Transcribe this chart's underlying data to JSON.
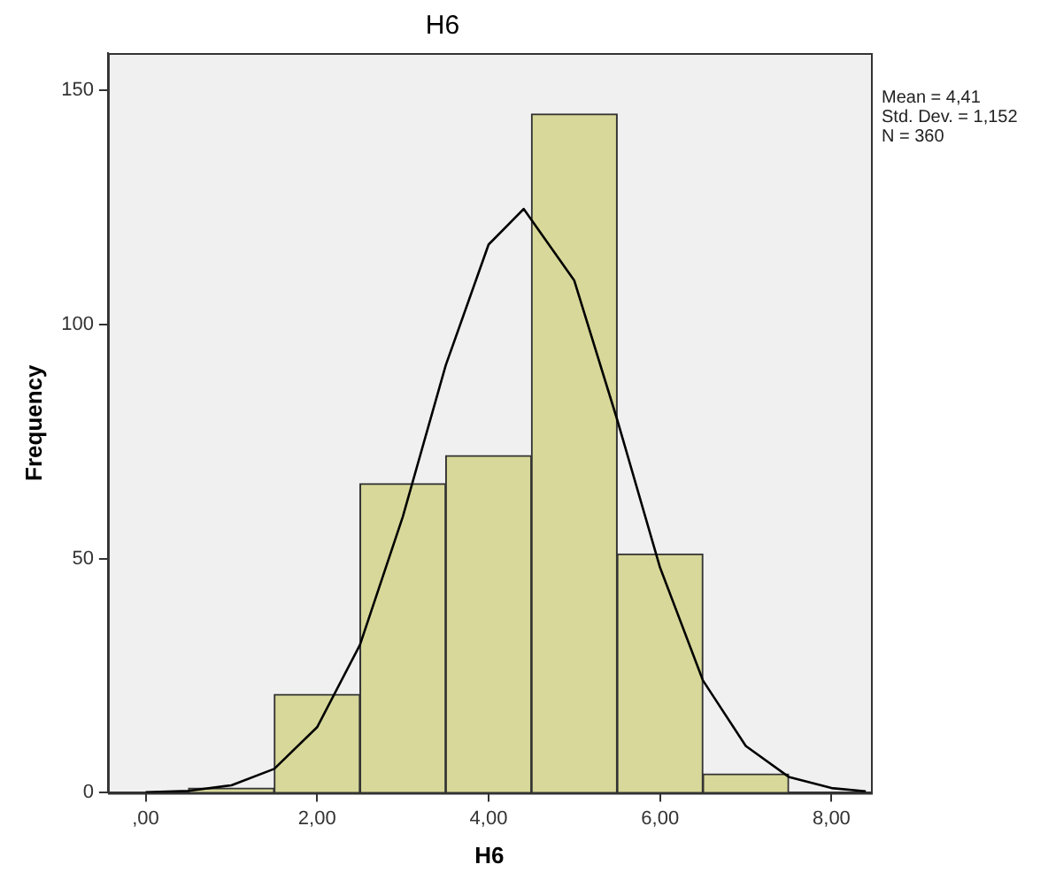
{
  "chart_data": {
    "type": "histogram",
    "title": "H6",
    "xlabel": "H6",
    "ylabel": "Frequency",
    "bins": [
      0.5,
      1.5,
      2.5,
      3.5,
      4.5,
      5.5,
      6.5,
      7.5
    ],
    "values": [
      1,
      21,
      66,
      72,
      145,
      51,
      4
    ],
    "color": "#d8d89a",
    "series": [
      {
        "type": "line",
        "color": "#000000",
        "x": [
          0,
          0.5,
          1,
          1.5,
          2,
          2.5,
          3,
          3.5,
          4,
          4.41,
          5,
          5.5,
          6,
          6.5,
          7,
          7.5,
          8,
          8.4
        ],
        "values": [
          0.1,
          0.4,
          1.6,
          5.1,
          14,
          31.6,
          59,
          91.3,
          117.1,
          124.7,
          109.4,
          79.7,
          48.1,
          24,
          10,
          3.4,
          1,
          0.3
        ]
      }
    ],
    "xlim": [
      -0.44,
      8.46
    ],
    "xticks": [
      {
        "value": 0,
        "label": ",00"
      },
      {
        "value": 2,
        "label": "2,00"
      },
      {
        "value": 4,
        "label": "4,00"
      },
      {
        "value": 6,
        "label": "6,00"
      },
      {
        "value": 8,
        "label": "8,00"
      }
    ],
    "ylim": [
      0,
      158
    ],
    "yticks": [
      0,
      50,
      100,
      150
    ],
    "annotations": [
      "Mean = 4,41",
      "Std. Dev. = 1,152",
      "N = 360"
    ],
    "grid": false,
    "legend": false,
    "marker": "none"
  }
}
